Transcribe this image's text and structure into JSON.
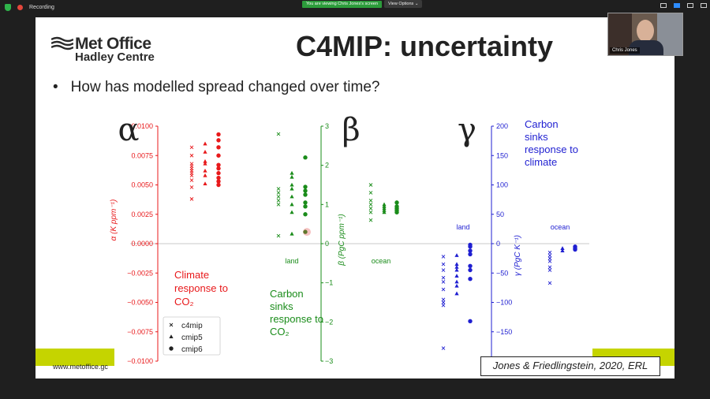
{
  "topbar": {
    "recording_label": "Recording",
    "viewing_banner": "You are viewing Chris Jones's screen",
    "view_options_label": "View Options ⌄"
  },
  "webcam": {
    "participant_name": "Chris Jones"
  },
  "slide": {
    "logo_line1": "Met Office",
    "logo_line2": "Hadley Centre",
    "title": "C4MIP: uncertainty",
    "bullet": "How has modelled spread changed over time?",
    "footer_url": "www.metoffice.gc",
    "citation": "Jones & Friedlingstein, 2020, ERL"
  },
  "colors": {
    "alpha": "#e8191b",
    "beta": "#1a8c1a",
    "gamma": "#1f1fd1",
    "slide_green": "#c5d400",
    "zoom_green": "#2c9c3b"
  },
  "chart_data": [
    {
      "type": "scatter",
      "symbol": "α",
      "ylabel": "α (K ppm⁻¹)",
      "ylim": [
        -0.01,
        0.01
      ],
      "yticks": [
        "0.0100",
        "0.0075",
        "0.0050",
        "0.0025",
        "0.0000",
        "−0.0025",
        "−0.0050",
        "−0.0075",
        "−0.0100"
      ],
      "annotation": [
        "Climate",
        "response to",
        "CO₂"
      ],
      "series": [
        {
          "name": "c4mip",
          "values": [
            0.0082,
            0.0075,
            0.0068,
            0.0066,
            0.0064,
            0.0062,
            0.006,
            0.0058,
            0.0054,
            0.0048,
            0.0038
          ]
        },
        {
          "name": "cmip5",
          "values": [
            0.0085,
            0.0078,
            0.007,
            0.0068,
            0.0062,
            0.0058,
            0.0051
          ]
        },
        {
          "name": "cmip6",
          "values": [
            0.0093,
            0.0088,
            0.0082,
            0.0075,
            0.0067,
            0.0064,
            0.006,
            0.0056,
            0.0053,
            0.005
          ]
        }
      ]
    },
    {
      "type": "scatter",
      "symbol": "β",
      "ylabel": "β (PgC ppm⁻¹)",
      "ylim": [
        -3,
        3
      ],
      "yticks": [
        "3",
        "2",
        "1",
        "0",
        "−1",
        "−2",
        "−3"
      ],
      "categories": [
        "land",
        "ocean"
      ],
      "annotation": [
        "Carbon",
        "sinks",
        "response to",
        "CO₂"
      ],
      "series": [
        {
          "name": "c4mip",
          "land": [
            2.8,
            1.4,
            1.3,
            1.2,
            1.1,
            1.0,
            0.2
          ],
          "ocean": [
            1.5,
            1.3,
            1.1,
            1.0,
            0.9,
            0.8,
            0.6
          ]
        },
        {
          "name": "cmip5",
          "land": [
            1.8,
            1.7,
            1.5,
            1.4,
            1.2,
            1.0,
            0.8,
            0.25
          ],
          "ocean": [
            1.0,
            0.95,
            0.9,
            0.85,
            0.8
          ]
        },
        {
          "name": "cmip6",
          "land": [
            2.2,
            1.45,
            1.35,
            1.25,
            1.05,
            0.95,
            0.75,
            0.3
          ],
          "ocean": [
            1.05,
            0.95,
            0.9,
            0.85,
            0.8
          ]
        }
      ]
    },
    {
      "type": "scatter",
      "symbol": "γ",
      "ylabel": "γ (PgC K⁻¹)",
      "ylim": [
        -200,
        200
      ],
      "yticks": [
        "200",
        "150",
        "100",
        "50",
        "0",
        "−50",
        "−100",
        "−150"
      ],
      "categories": [
        "land",
        "ocean"
      ],
      "annotation": [
        "Carbon",
        "sinks",
        "response to",
        "climate"
      ],
      "series": [
        {
          "name": "c4mip",
          "land": [
            -22,
            -35,
            -45,
            -58,
            -65,
            -78,
            -95,
            -100,
            -105,
            -178
          ],
          "ocean": [
            -15,
            -20,
            -25,
            -30,
            -40,
            -45,
            -67
          ]
        },
        {
          "name": "cmip5",
          "land": [
            -20,
            -35,
            -40,
            -45,
            -55,
            -65,
            -72,
            -85
          ],
          "ocean": [
            -8,
            -12
          ]
        },
        {
          "name": "cmip6",
          "land": [
            -2,
            -5,
            -12,
            -18,
            -38,
            -45,
            -60,
            -132
          ],
          "ocean": [
            -5,
            -8,
            -10
          ]
        }
      ]
    }
  ],
  "legend": {
    "items": [
      "c4mip",
      "cmip5",
      "cmip6"
    ]
  }
}
